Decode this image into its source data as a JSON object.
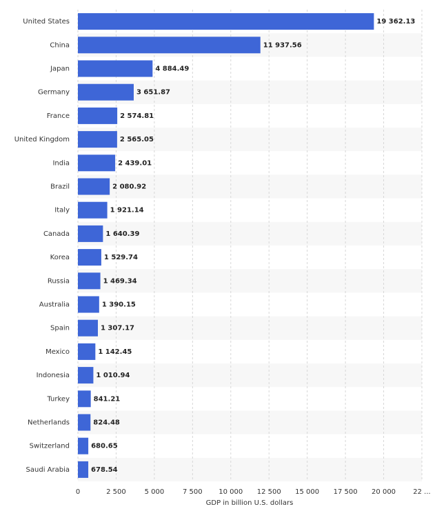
{
  "chart_data": {
    "type": "bar",
    "orientation": "horizontal",
    "categories": [
      "United States",
      "China",
      "Japan",
      "Germany",
      "France",
      "United Kingdom",
      "India",
      "Brazil",
      "Italy",
      "Canada",
      "Korea",
      "Russia",
      "Australia",
      "Spain",
      "Mexico",
      "Indonesia",
      "Turkey",
      "Netherlands",
      "Switzerland",
      "Saudi Arabia"
    ],
    "values": [
      19362.13,
      11937.56,
      4884.49,
      3651.87,
      2574.81,
      2565.05,
      2439.01,
      2080.92,
      1921.14,
      1640.39,
      1529.74,
      1469.34,
      1390.15,
      1307.17,
      1142.45,
      1010.94,
      841.21,
      824.48,
      680.65,
      678.54
    ],
    "value_labels": [
      "19 362.13",
      "11 937.56",
      "4 884.49",
      "3 651.87",
      "2 574.81",
      "2 565.05",
      "2 439.01",
      "2 080.92",
      "1 921.14",
      "1 640.39",
      "1 529.74",
      "1 469.34",
      "1 390.15",
      "1 307.17",
      "1 142.45",
      "1 010.94",
      "841.21",
      "824.48",
      "680.65",
      "678.54"
    ],
    "color": "#3e66d7",
    "xlabel": "GDP in billion U.S. dollars",
    "xlim": [
      0,
      22500
    ],
    "xticks": [
      0,
      {
        "value": 2500,
        "label": "2 500"
      },
      {
        "value": 5000,
        "label": "5 000"
      },
      {
        "value": 7500,
        "label": "7 500"
      },
      {
        "value": 10000,
        "label": "10 000"
      },
      {
        "value": 12500,
        "label": "12 500"
      },
      {
        "value": 15000,
        "label": "15 000"
      },
      {
        "value": 17500,
        "label": "17 500"
      },
      {
        "value": 20000,
        "label": "20 000"
      },
      {
        "value": 22500,
        "label": "22 ..."
      }
    ],
    "grid": true
  }
}
